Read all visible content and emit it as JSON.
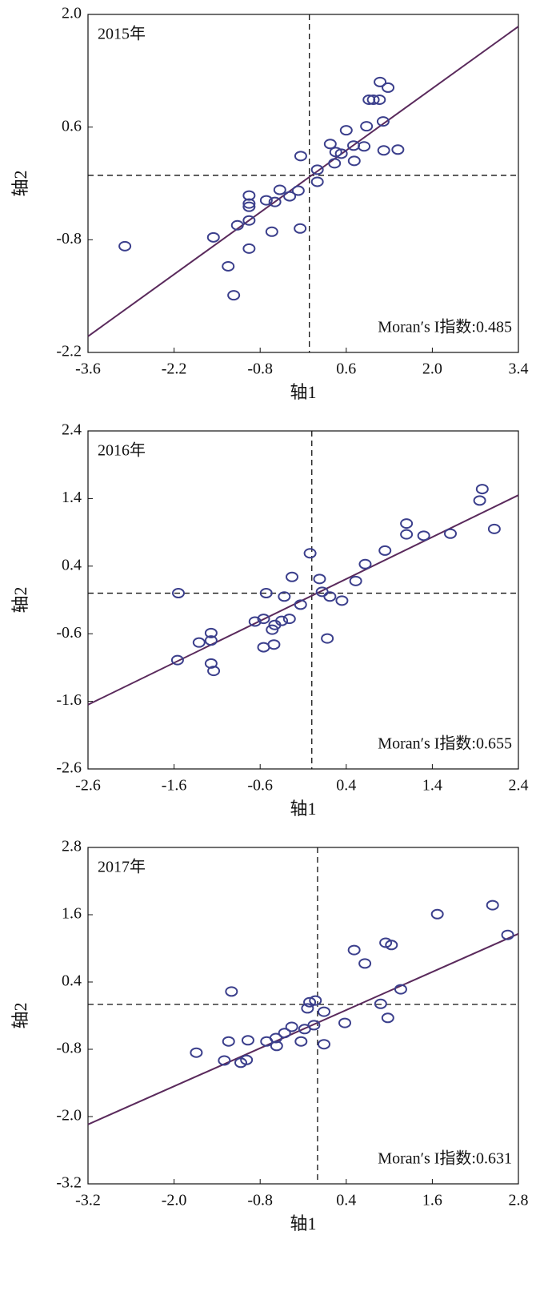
{
  "chart_data": [
    {
      "type": "scatter",
      "title": "2015年",
      "annotation": "Moran′s I指数:0.485",
      "xlabel": "轴1",
      "ylabel": "轴2",
      "xlim": [
        -3.6,
        3.4
      ],
      "ylim": [
        -2.2,
        2.0
      ],
      "xticks": [
        -3.6,
        -2.2,
        -0.8,
        0.6,
        {
          "value": 2,
          "label": "2.0"
        },
        3.4
      ],
      "yticks": [
        -2.2,
        -0.8,
        0.6,
        {
          "value": 2,
          "label": "2.0"
        }
      ],
      "ref_x": 0,
      "ref_y": 0,
      "color": "#3b3f8c",
      "line_color": "#5a2a5c",
      "fit_line": {
        "x": [
          -3.6,
          3.4
        ],
        "y": [
          -2.0,
          1.85
        ]
      },
      "x": [
        -3.0,
        -1.56,
        -1.32,
        -1.23,
        -1.17,
        -0.98,
        -0.98,
        -0.98,
        -0.98,
        -0.98,
        -0.7,
        -0.61,
        -0.56,
        -0.48,
        -0.32,
        -0.18,
        -0.15,
        -0.14,
        0.13,
        0.13,
        0.34,
        0.41,
        0.43,
        0.52,
        0.6,
        0.72,
        0.73,
        0.89,
        0.93,
        0.97,
        1.04,
        1.14,
        1.15,
        1.2,
        1.21,
        1.28,
        1.44
      ],
      "y": [
        -0.88,
        -0.77,
        -1.13,
        -1.49,
        -0.62,
        -0.25,
        -0.35,
        -0.39,
        -0.56,
        -0.91,
        -0.31,
        -0.7,
        -0.33,
        -0.18,
        -0.26,
        -0.19,
        -0.66,
        0.24,
        0.07,
        -0.08,
        0.39,
        0.15,
        0.29,
        0.27,
        0.56,
        0.37,
        0.18,
        0.36,
        0.61,
        0.94,
        0.94,
        0.94,
        1.16,
        0.67,
        0.31,
        1.09,
        0.32
      ]
    },
    {
      "type": "scatter",
      "title": "2016年",
      "annotation": "Moran′s I指数:0.655",
      "xlabel": "轴1",
      "ylabel": "轴2",
      "xlim": [
        -2.6,
        2.4
      ],
      "ylim": [
        -2.6,
        2.4
      ],
      "xticks": [
        -2.6,
        -1.6,
        -0.6,
        0.4,
        1.4,
        2.4
      ],
      "yticks": [
        -2.6,
        -1.6,
        -0.6,
        0.4,
        1.4,
        2.4
      ],
      "ref_x": 0,
      "ref_y": 0,
      "color": "#3b3f8c",
      "line_color": "#5a2a5c",
      "fit_line": {
        "x": [
          -2.6,
          2.4
        ],
        "y": [
          -1.65,
          1.45
        ]
      },
      "x": [
        -1.55,
        -1.56,
        -1.31,
        -1.17,
        -1.17,
        -1.17,
        -1.14,
        -0.66,
        -0.56,
        -0.56,
        -0.53,
        -0.46,
        -0.44,
        -0.43,
        -0.35,
        -0.32,
        -0.26,
        -0.23,
        -0.13,
        -0.02,
        0.09,
        0.12,
        0.18,
        0.21,
        0.35,
        0.51,
        0.62,
        0.85,
        1.1,
        1.1,
        1.3,
        1.61,
        1.95,
        1.98,
        2.12
      ],
      "y": [
        0.0,
        -0.99,
        -0.73,
        -0.59,
        -0.7,
        -1.04,
        -1.15,
        -0.42,
        -0.38,
        -0.8,
        0.0,
        -0.54,
        -0.76,
        -0.47,
        -0.41,
        -0.05,
        -0.38,
        0.24,
        -0.17,
        0.59,
        0.21,
        0.02,
        -0.67,
        -0.05,
        -0.11,
        0.18,
        0.43,
        0.63,
        1.03,
        0.87,
        0.85,
        0.88,
        1.37,
        1.54,
        0.95
      ]
    },
    {
      "type": "scatter",
      "title": "2017年",
      "annotation": "Moran′s I指数:0.631",
      "xlabel": "轴1",
      "ylabel": "轴2",
      "xlim": [
        -3.2,
        2.8
      ],
      "ylim": [
        -3.2,
        2.8
      ],
      "xticks": [
        -3.2,
        {
          "value": -2,
          "label": "-2.0"
        },
        -0.8,
        0.4,
        1.6,
        2.8
      ],
      "yticks": [
        -3.2,
        {
          "value": -2,
          "label": "-2.0"
        },
        -0.8,
        0.4,
        1.6,
        2.8
      ],
      "ref_x": 0,
      "ref_y": 0,
      "color": "#3b3f8c",
      "line_color": "#5a2a5c",
      "fit_line": {
        "x": [
          -3.2,
          2.8
        ],
        "y": [
          -2.14,
          1.26
        ]
      },
      "x": [
        -1.69,
        -1.3,
        -1.24,
        -1.2,
        -1.07,
        -0.99,
        -0.97,
        -0.71,
        -0.58,
        -0.57,
        -0.46,
        -0.36,
        -0.23,
        -0.18,
        -0.14,
        -0.11,
        -0.05,
        -0.03,
        0.09,
        0.09,
        0.38,
        0.51,
        0.66,
        0.88,
        0.95,
        0.98,
        1.03,
        1.16,
        1.67,
        2.44,
        2.65
      ],
      "y": [
        -0.86,
        -1.0,
        -0.66,
        0.23,
        -1.04,
        -0.99,
        -0.64,
        -0.66,
        -0.6,
        -0.74,
        -0.51,
        -0.4,
        -0.66,
        -0.44,
        -0.07,
        0.04,
        -0.37,
        0.07,
        -0.13,
        -0.71,
        -0.33,
        0.97,
        0.73,
        0.01,
        1.1,
        -0.24,
        1.06,
        0.27,
        1.61,
        1.77,
        1.24
      ]
    }
  ]
}
